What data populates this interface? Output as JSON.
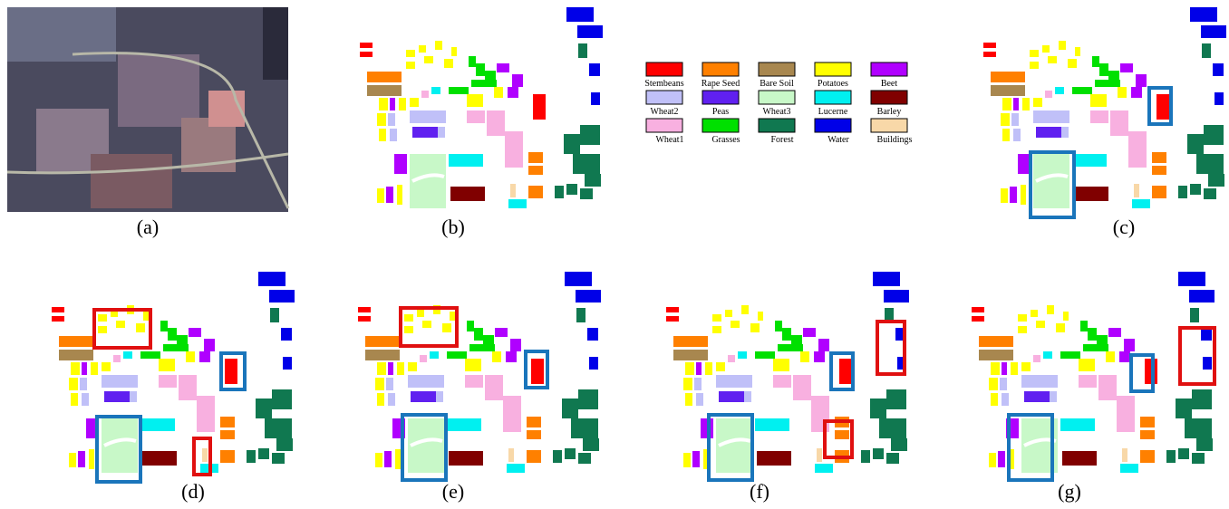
{
  "panels": [
    "(a)",
    "(b)",
    "(c)",
    "(d)",
    "(e)",
    "(f)",
    "(g)"
  ],
  "legend": [
    {
      "name": "Stembeans",
      "color": "#ff0000"
    },
    {
      "name": "Rape Seed",
      "color": "#ff8000"
    },
    {
      "name": "Bare Soil",
      "color": "#a8874f"
    },
    {
      "name": "Potatoes",
      "color": "#ffff00"
    },
    {
      "name": "Beet",
      "color": "#b000ff"
    },
    {
      "name": "Wheat2",
      "color": "#c0c0f8"
    },
    {
      "name": "Peas",
      "color": "#6020f0"
    },
    {
      "name": "Wheat3",
      "color": "#c8f8c8"
    },
    {
      "name": "Lucerne",
      "color": "#00f0f0"
    },
    {
      "name": "Barley",
      "color": "#800000"
    },
    {
      "name": "Wheat1",
      "color": "#f8b0e0"
    },
    {
      "name": "Grasses",
      "color": "#00e000"
    },
    {
      "name": "Forest",
      "color": "#107850"
    },
    {
      "name": "Water",
      "color": "#0000e8"
    },
    {
      "name": "Buildings",
      "color": "#f8d8a8"
    }
  ]
}
